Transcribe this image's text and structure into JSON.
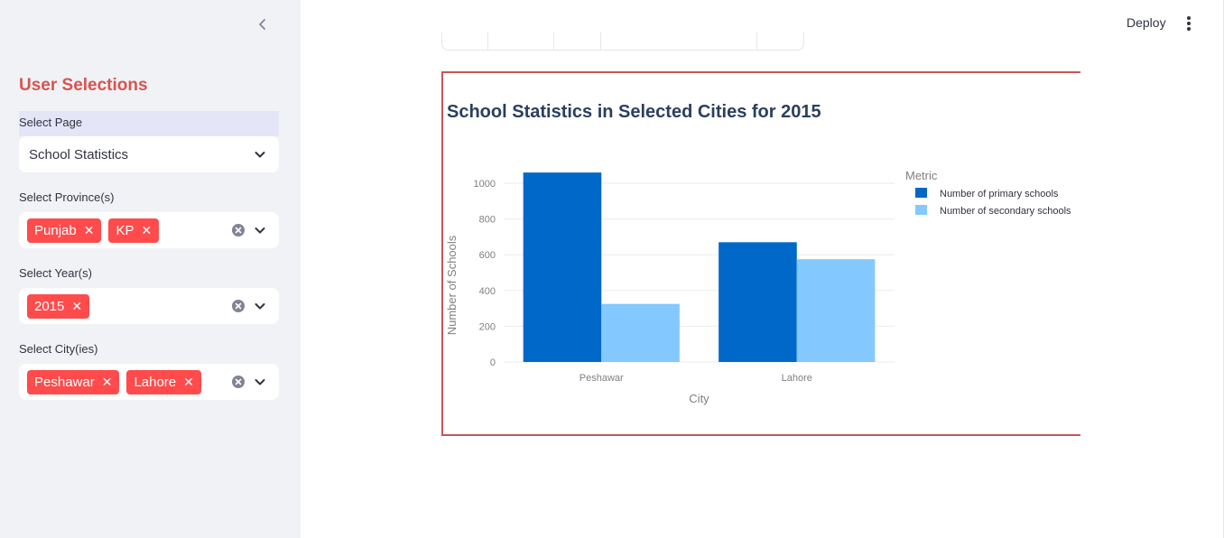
{
  "sidebar": {
    "title": "User Selections",
    "page_select": {
      "label": "Select Page",
      "value": "School Statistics"
    },
    "province_select": {
      "label": "Select Province(s)",
      "tags": [
        "Punjab",
        "KP"
      ]
    },
    "year_select": {
      "label": "Select Year(s)",
      "tags": [
        "2015"
      ]
    },
    "city_select": {
      "label": "Select City(ies)",
      "tags": [
        "Peshawar",
        "Lahore"
      ]
    }
  },
  "header": {
    "deploy_label": "Deploy"
  },
  "colors": {
    "accent": "#ff4b4b",
    "primary_series": "#0068c9",
    "secondary_series": "#83c9ff",
    "frame": "#c65659"
  },
  "chart_data": {
    "type": "bar",
    "title": "School Statistics in Selected Cities for 2015",
    "xlabel": "City",
    "ylabel": "Number of Schools",
    "categories": [
      "Peshawar",
      "Lahore"
    ],
    "series": [
      {
        "name": "Number of primary schools",
        "values": [
          1060,
          670
        ],
        "color": "#0068c9"
      },
      {
        "name": "Number of secondary schools",
        "values": [
          325,
          575
        ],
        "color": "#83c9ff"
      }
    ],
    "ylim": [
      0,
      1100
    ],
    "yticks": [
      0,
      200,
      400,
      600,
      800,
      1000
    ],
    "legend_title": "Metric",
    "legend_position": "top-right",
    "grid": true
  }
}
